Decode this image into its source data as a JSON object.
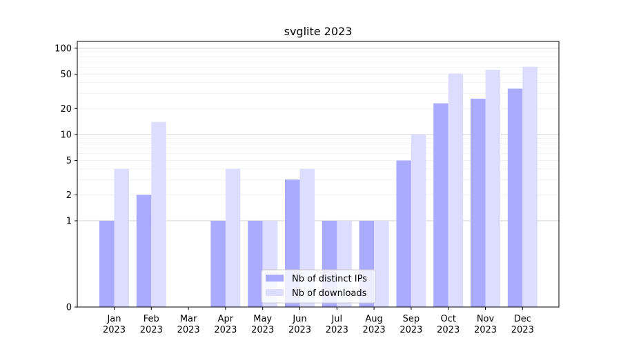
{
  "chart_data": {
    "type": "bar",
    "title": "svglite 2023",
    "xlabel": "",
    "ylabel": "",
    "y_scale": "symlog",
    "ylim": [
      0,
      120
    ],
    "yticks": [
      {
        "value": 0,
        "label": "0"
      },
      {
        "value": 1,
        "label": "1"
      },
      {
        "value": 2,
        "label": "2"
      },
      {
        "value": 5,
        "label": "5"
      },
      {
        "value": 10,
        "label": "10"
      },
      {
        "value": 20,
        "label": "20"
      },
      {
        "value": 50,
        "label": "50"
      },
      {
        "value": 100,
        "label": "100"
      }
    ],
    "grid": true,
    "legend_position": "lower-center",
    "categories": [
      {
        "month": "Jan",
        "year": "2023"
      },
      {
        "month": "Feb",
        "year": "2023"
      },
      {
        "month": "Mar",
        "year": "2023"
      },
      {
        "month": "Apr",
        "year": "2023"
      },
      {
        "month": "May",
        "year": "2023"
      },
      {
        "month": "Jun",
        "year": "2023"
      },
      {
        "month": "Jul",
        "year": "2023"
      },
      {
        "month": "Aug",
        "year": "2023"
      },
      {
        "month": "Sep",
        "year": "2023"
      },
      {
        "month": "Oct",
        "year": "2023"
      },
      {
        "month": "Nov",
        "year": "2023"
      },
      {
        "month": "Dec",
        "year": "2023"
      }
    ],
    "series": [
      {
        "name": "Nb of distinct IPs",
        "color": "#aaaaff",
        "values": [
          1,
          2,
          0,
          1,
          1,
          3,
          1,
          1,
          5,
          23,
          26,
          34
        ]
      },
      {
        "name": "Nb of downloads",
        "color": "#ddddff",
        "values": [
          4,
          14,
          0,
          4,
          1,
          4,
          1,
          1,
          10,
          51,
          56,
          61
        ]
      }
    ]
  }
}
